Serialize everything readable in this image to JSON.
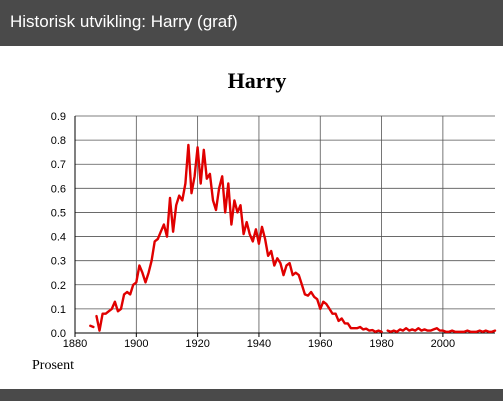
{
  "window": {
    "title": "Historisk utvikling: Harry (graf)"
  },
  "colors": {
    "titlebar": "#4a4a4a",
    "series": "#e00000",
    "grid": "#555555"
  },
  "chart_data": {
    "type": "line",
    "title": "Harry",
    "xlabel": "",
    "ylabel": "",
    "footer": "Prosent",
    "xlim": [
      1880,
      2017
    ],
    "ylim": [
      0,
      0.9
    ],
    "x_ticks": [
      1880,
      1900,
      1920,
      1940,
      1960,
      1980,
      2000
    ],
    "y_ticks": [
      0.0,
      0.1,
      0.2,
      0.3,
      0.4,
      0.5,
      0.6,
      0.7,
      0.8,
      0.9
    ],
    "x_tick_labels": [
      "1880",
      "1900",
      "1920",
      "1940",
      "1960",
      "1980",
      "2000"
    ],
    "y_tick_labels": [
      "0.0",
      "0.1",
      "0.2",
      "0.3",
      "0.4",
      "0.5",
      "0.6",
      "0.7",
      "0.8",
      "0.9"
    ],
    "grid": true,
    "segments": [
      {
        "x": [
          1885,
          1886
        ],
        "y": [
          0.03,
          0.025
        ]
      },
      {
        "x": [
          1887,
          1888,
          1889,
          1890,
          1891,
          1892,
          1893,
          1894,
          1895,
          1896,
          1897,
          1898,
          1899,
          1900,
          1901,
          1902,
          1903,
          1904,
          1905,
          1906,
          1907,
          1908,
          1909,
          1910,
          1911,
          1912,
          1913,
          1914,
          1915,
          1916,
          1917,
          1918,
          1919,
          1920,
          1921,
          1922,
          1923,
          1924,
          1925,
          1926,
          1927,
          1928,
          1929,
          1930,
          1931,
          1932,
          1933,
          1934,
          1935,
          1936,
          1937,
          1938,
          1939,
          1940,
          1941,
          1942,
          1943,
          1944,
          1945,
          1946,
          1947,
          1948,
          1949,
          1950,
          1951,
          1952,
          1953,
          1954,
          1955,
          1956,
          1957,
          1958,
          1959,
          1960,
          1961,
          1962,
          1963,
          1964,
          1965,
          1966,
          1967,
          1968,
          1969,
          1970,
          1971,
          1972,
          1973,
          1974,
          1975,
          1976,
          1977,
          1978,
          1979,
          1980
        ],
        "y": [
          0.07,
          0.01,
          0.08,
          0.08,
          0.09,
          0.1,
          0.13,
          0.09,
          0.1,
          0.16,
          0.17,
          0.16,
          0.2,
          0.21,
          0.28,
          0.25,
          0.21,
          0.25,
          0.3,
          0.38,
          0.39,
          0.42,
          0.45,
          0.4,
          0.56,
          0.42,
          0.53,
          0.57,
          0.55,
          0.62,
          0.78,
          0.58,
          0.65,
          0.77,
          0.62,
          0.76,
          0.64,
          0.66,
          0.55,
          0.51,
          0.6,
          0.65,
          0.5,
          0.62,
          0.45,
          0.55,
          0.5,
          0.53,
          0.41,
          0.46,
          0.41,
          0.38,
          0.43,
          0.37,
          0.44,
          0.39,
          0.32,
          0.34,
          0.28,
          0.31,
          0.29,
          0.24,
          0.28,
          0.29,
          0.24,
          0.25,
          0.24,
          0.2,
          0.16,
          0.155,
          0.17,
          0.15,
          0.14,
          0.1,
          0.13,
          0.12,
          0.1,
          0.08,
          0.08,
          0.05,
          0.06,
          0.04,
          0.04,
          0.02,
          0.02,
          0.02,
          0.025,
          0.015,
          0.018,
          0.01,
          0.012,
          0.005,
          0.01,
          0.005
        ]
      },
      {
        "x": [
          1982,
          1983,
          1984,
          1985,
          1986,
          1987,
          1988,
          1989,
          1990,
          1991,
          1992,
          1993,
          1994,
          1995,
          1996,
          1997,
          1998,
          1999,
          2000,
          2001,
          2002,
          2003,
          2004,
          2005,
          2006,
          2007,
          2008,
          2009,
          2010,
          2011,
          2012,
          2013,
          2014,
          2015,
          2016,
          2017
        ],
        "y": [
          0.01,
          0.005,
          0.01,
          0.005,
          0.015,
          0.01,
          0.02,
          0.01,
          0.015,
          0.01,
          0.02,
          0.01,
          0.015,
          0.01,
          0.01,
          0.015,
          0.02,
          0.01,
          0.01,
          0.005,
          0.005,
          0.01,
          0.005,
          0.005,
          0.005,
          0.005,
          0.01,
          0.005,
          0.005,
          0.005,
          0.01,
          0.005,
          0.01,
          0.005,
          0.005,
          0.01
        ]
      }
    ]
  }
}
